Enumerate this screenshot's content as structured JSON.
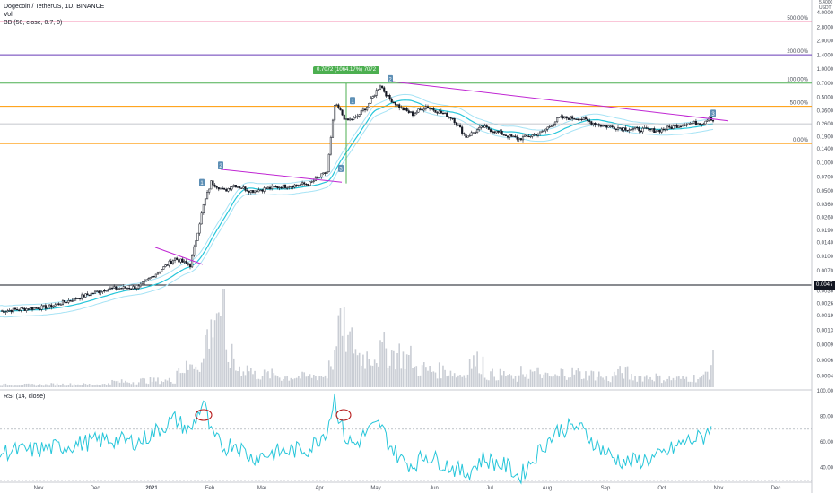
{
  "header": {
    "symbol_line": "Dogecoin / TetherUS, 1D, BINANCE",
    "vol_label": "Vol",
    "bb_label": "BB (50, close, 0.7, 0)"
  },
  "rsi_label": "RSI (14, close)",
  "top_right": {
    "unit_line1": "5.4000",
    "unit_line2": "USDT"
  },
  "fib_levels": [
    {
      "label": "500.00%",
      "price": 3.2,
      "color": "#e91e63"
    },
    {
      "label": "200.00%",
      "price": 1.42,
      "color": "#673ab7"
    },
    {
      "label": "100.00%",
      "price": 0.7072,
      "color": "#4caf50"
    },
    {
      "label": "50.00%",
      "price": 0.4,
      "color": "#ff9800"
    },
    {
      "label": "0.00%",
      "price": 0.16,
      "color": "#ff9800"
    }
  ],
  "measure_label": "0.7072 (1064.17%) 7072",
  "last_price_tag": "0.0047",
  "price_axis_ticks": [
    "4.0000",
    "2.8000",
    "2.0000",
    "1.4000",
    "1.0000",
    "0.7000",
    "0.5000",
    "0.3600",
    "0.2600",
    "0.1900",
    "0.1400",
    "0.1000",
    "0.0700",
    "0.0500",
    "0.0360",
    "0.0260",
    "0.0190",
    "0.0140",
    "0.0100",
    "0.0070",
    "0.0050",
    "0.0036",
    "0.0026",
    "0.0019",
    "0.0013",
    "0.0009",
    "0.0006",
    "0.0004"
  ],
  "rsi_ticks": [
    "100.00",
    "80.00",
    "60.00",
    "40.00"
  ],
  "time_ticks": [
    "Nov",
    "Dec",
    "2021",
    "Feb",
    "Mar",
    "Apr",
    "May",
    "Jun",
    "Jul",
    "Aug",
    "Sep",
    "Oct",
    "Nov",
    "Dec"
  ],
  "wave_markers": [
    {
      "label": "1",
      "anchor": "A"
    },
    {
      "label": "2",
      "anchor": "B"
    },
    {
      "label": "3",
      "anchor": "C"
    },
    {
      "label": "1",
      "anchor": "D"
    },
    {
      "label": "2",
      "anchor": "E"
    },
    {
      "label": "3",
      "anchor": "F"
    }
  ],
  "chart_data": {
    "type": "line",
    "title": "Dogecoin / TetherUS, 1D, BINANCE",
    "y_scale": "log",
    "x": [
      "2020-10-20",
      "2020-11-15",
      "2020-12-15",
      "2021-01-01",
      "2021-01-20",
      "2021-01-28",
      "2021-02-04",
      "2021-02-08",
      "2021-02-15",
      "2021-02-20",
      "2021-03-01",
      "2021-03-15",
      "2021-04-01",
      "2021-04-10",
      "2021-04-14",
      "2021-04-16",
      "2021-04-20",
      "2021-04-25",
      "2021-05-01",
      "2021-05-08",
      "2021-05-12",
      "2021-05-19",
      "2021-05-25",
      "2021-06-01",
      "2021-06-15",
      "2021-06-22",
      "2021-07-01",
      "2021-07-15",
      "2021-07-20",
      "2021-08-01",
      "2021-08-10",
      "2021-08-20",
      "2021-09-01",
      "2021-09-07",
      "2021-09-15",
      "2021-10-01",
      "2021-10-15",
      "2021-10-25",
      "2021-10-28",
      "2021-10-30"
    ],
    "series": [
      {
        "values": [
          0.0026,
          0.0029,
          0.0045,
          0.0047,
          0.0095,
          0.008,
          0.035,
          0.062,
          0.05,
          0.058,
          0.05,
          0.055,
          0.06,
          0.08,
          0.41,
          0.38,
          0.28,
          0.3,
          0.4,
          0.68,
          0.5,
          0.38,
          0.33,
          0.4,
          0.3,
          0.19,
          0.24,
          0.19,
          0.18,
          0.21,
          0.3,
          0.3,
          0.25,
          0.24,
          0.23,
          0.22,
          0.26,
          0.27,
          0.31,
          0.28
        ]
      },
      {
        "name": "Vol",
        "values": [
          120,
          140,
          260,
          320,
          900,
          1200,
          2500,
          3800,
          1400,
          900,
          600,
          500,
          550,
          1300,
          3200,
          2600,
          2100,
          1500,
          1600,
          1800,
          1600,
          1400,
          900,
          800,
          600,
          1200,
          600,
          400,
          700,
          500,
          700,
          600,
          400,
          700,
          500,
          400,
          450,
          700,
          1200,
          800
        ]
      },
      {
        "name": "RSI (14, close)",
        "values": [
          52,
          55,
          62,
          60,
          78,
          68,
          92,
          66,
          55,
          60,
          48,
          52,
          55,
          70,
          95,
          80,
          62,
          58,
          68,
          74,
          60,
          46,
          42,
          50,
          40,
          35,
          47,
          40,
          32,
          56,
          70,
          72,
          55,
          48,
          44,
          48,
          60,
          64,
          72,
          66
        ]
      }
    ],
    "ylim": [
      0.0003,
      5.4
    ],
    "rsi_range": [
      30,
      100
    ]
  }
}
